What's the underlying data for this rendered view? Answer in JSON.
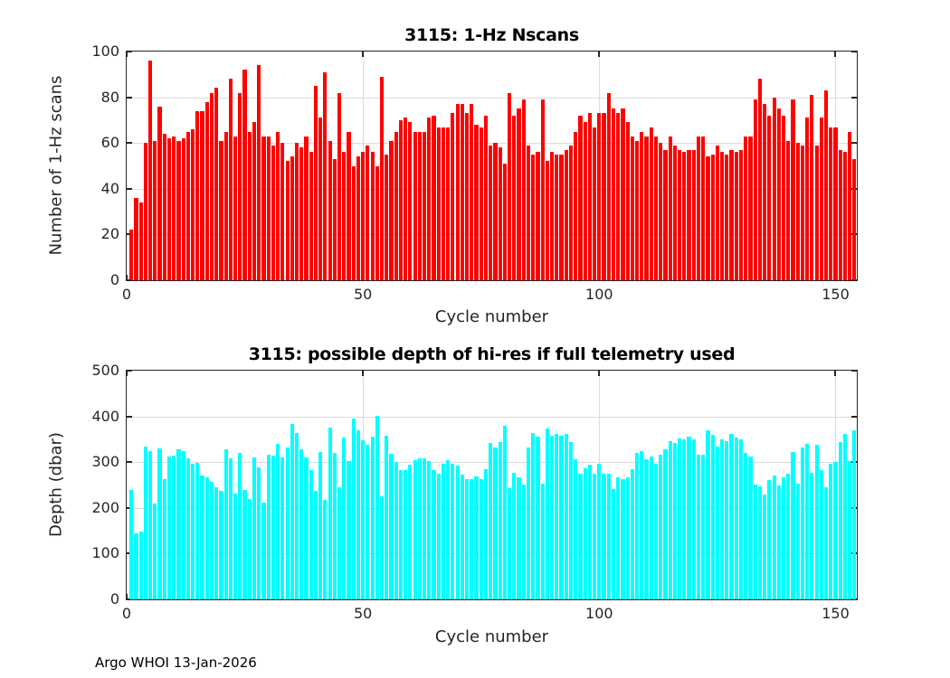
{
  "figure": {
    "footer": "Argo WHOI 13-Jan-2026",
    "background_color": "#ffffff",
    "axis_color": "#262626",
    "grid_color": "#dcdcdc"
  },
  "chart_data": [
    {
      "type": "bar",
      "title": "3115: 1-Hz Nscans",
      "xlabel": "Cycle number",
      "ylabel": "Number of 1-Hz scans",
      "bar_color": "#ff0000",
      "grid": true,
      "legend": "none",
      "xlim": [
        0,
        154.5
      ],
      "ylim": [
        0,
        100
      ],
      "xticks": [
        0,
        50,
        100,
        150
      ],
      "yticks": [
        0,
        20,
        40,
        60,
        80,
        100
      ],
      "x_start": 1,
      "x_label_meaning": "cycle number (1..154)",
      "values": [
        22,
        36,
        34,
        60,
        96,
        61,
        76,
        64,
        62,
        63,
        61,
        62,
        65,
        66,
        74,
        74,
        78,
        82,
        84,
        61,
        65,
        88,
        63,
        82,
        92,
        65,
        69,
        94,
        63,
        63,
        59,
        65,
        60,
        52,
        54,
        60,
        58,
        63,
        56,
        85,
        71,
        91,
        61,
        53,
        82,
        56,
        65,
        50,
        54,
        56,
        59,
        56,
        50,
        89,
        55,
        61,
        65,
        70,
        71,
        69,
        65,
        65,
        65,
        71,
        72,
        67,
        67,
        67,
        73,
        77,
        77,
        73,
        77,
        68,
        67,
        72,
        59,
        60,
        58,
        51,
        82,
        72,
        75,
        79,
        59,
        55,
        56,
        79,
        52,
        56,
        55,
        55,
        57,
        59,
        65,
        72,
        69,
        73,
        67,
        73,
        73,
        82,
        75,
        73,
        75,
        69,
        63,
        61,
        65,
        63,
        67,
        63,
        60,
        57,
        63,
        59,
        57,
        56,
        57,
        57,
        63,
        63,
        54,
        55,
        59,
        56,
        55,
        57,
        56,
        57,
        63,
        63,
        79,
        88,
        77,
        72,
        80,
        75,
        72,
        61,
        79,
        60,
        59,
        71,
        81,
        59,
        71,
        83,
        67,
        67,
        57,
        56,
        65,
        53
      ]
    },
    {
      "type": "bar",
      "title": "3115: possible depth of hi-res if full telemetry used",
      "xlabel": "Cycle number",
      "ylabel": "Depth (dbar)",
      "bar_color": "#00ffff",
      "grid": true,
      "legend": "none",
      "xlim": [
        0,
        154.5
      ],
      "ylim": [
        0,
        500
      ],
      "xticks": [
        0,
        50,
        100,
        150
      ],
      "yticks": [
        0,
        100,
        200,
        300,
        400,
        500
      ],
      "x_start": 1,
      "x_label_meaning": "cycle number (1..154)",
      "values": [
        240,
        145,
        148,
        335,
        325,
        209,
        331,
        263,
        312,
        314,
        329,
        325,
        308,
        297,
        299,
        271,
        267,
        256,
        245,
        238,
        329,
        308,
        232,
        320,
        240,
        220,
        310,
        288,
        212,
        317,
        314,
        340,
        310,
        332,
        383,
        364,
        329,
        310,
        283,
        238,
        322,
        217,
        376,
        321,
        246,
        354,
        302,
        396,
        370,
        347,
        337,
        356,
        402,
        225,
        358,
        319,
        301,
        283,
        283,
        294,
        304,
        309,
        308,
        302,
        283,
        275,
        296,
        304,
        296,
        293,
        273,
        262,
        262,
        269,
        262,
        284,
        342,
        333,
        344,
        380,
        243,
        277,
        267,
        251,
        333,
        364,
        356,
        253,
        374,
        358,
        362,
        357,
        362,
        343,
        306,
        274,
        286,
        294,
        274,
        297,
        274,
        274,
        242,
        267,
        263,
        267,
        284,
        320,
        324,
        307,
        313,
        296,
        317,
        329,
        346,
        341,
        352,
        350,
        355,
        350,
        316,
        317,
        370,
        360,
        335,
        350,
        345,
        362,
        354,
        349,
        321,
        312,
        251,
        248,
        230,
        260,
        271,
        250,
        266,
        275,
        323,
        253,
        332,
        339,
        277,
        337,
        283,
        246,
        296,
        301,
        343,
        362,
        303,
        370
      ]
    }
  ]
}
